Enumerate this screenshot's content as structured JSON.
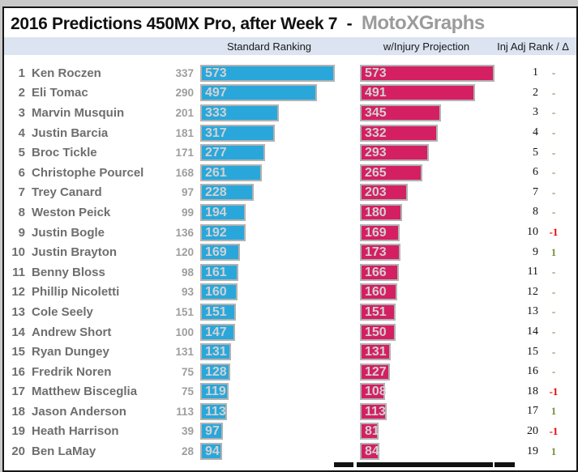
{
  "title": {
    "main": "2016 Predictions 450MX Pro, after Week 7",
    "separator": "-",
    "brand": "MotoXGraphs"
  },
  "columns": {
    "standard": "Standard Ranking",
    "injury": "w/Injury Projection",
    "adj": "Inj Adj Rank / Δ"
  },
  "colors": {
    "standard_bar": "#29A7DB",
    "injury_bar": "#D41F63",
    "bar_border": "#B2B2B2",
    "bar_label": "#D2D1D1",
    "header_band": "#DCE4F1",
    "delta_up": "#76923C",
    "delta_down": "#EE0000",
    "delta_none": "#6F7F33",
    "brand_gray": "#9B9B9B"
  },
  "chart_data": {
    "type": "bar",
    "orientation": "horizontal",
    "title": "2016 Predictions 450MX Pro, after Week 7 - MotoXGraphs",
    "xlim": [
      0,
      590
    ],
    "legend_position": "top",
    "grid": false,
    "categories": [
      "Ken Roczen",
      "Eli Tomac",
      "Marvin Musquin",
      "Justin Barcia",
      "Broc Tickle",
      "Christophe Pourcel",
      "Trey Canard",
      "Weston Peick",
      "Justin Bogle",
      "Justin Brayton",
      "Benny Bloss",
      "Phillip Nicoletti",
      "Cole Seely",
      "Andrew Short",
      "Ryan Dungey",
      "Fredrik Noren",
      "Matthew Bisceglia",
      "Jason Anderson",
      "Heath Harrison",
      "Ben LaMay"
    ],
    "ranks": [
      1,
      2,
      3,
      4,
      5,
      6,
      7,
      8,
      9,
      10,
      11,
      12,
      13,
      14,
      15,
      16,
      17,
      18,
      19,
      20
    ],
    "secondary_values": [
      337,
      290,
      201,
      181,
      171,
      168,
      97,
      99,
      136,
      120,
      98,
      93,
      151,
      100,
      131,
      75,
      75,
      113,
      39,
      28
    ],
    "series": [
      {
        "name": "Standard Ranking",
        "color": "#29A7DB",
        "values": [
          573,
          497,
          333,
          317,
          277,
          261,
          228,
          194,
          192,
          169,
          161,
          160,
          151,
          147,
          131,
          128,
          119,
          113,
          97,
          94
        ]
      },
      {
        "name": "w/Injury Projection",
        "color": "#D41F63",
        "values": [
          573,
          491,
          345,
          332,
          293,
          265,
          203,
          180,
          169,
          173,
          166,
          160,
          151,
          150,
          131,
          127,
          108,
          113,
          81,
          84
        ]
      }
    ],
    "inj_adj_ranks": [
      1,
      2,
      3,
      4,
      5,
      6,
      7,
      8,
      10,
      9,
      11,
      12,
      13,
      14,
      15,
      16,
      18,
      17,
      20,
      19
    ],
    "deltas": [
      "-",
      "-",
      "-",
      "-",
      "-",
      "-",
      "-",
      "-",
      "-1",
      "1",
      "-",
      "-",
      "-",
      "-",
      "-",
      "-",
      "-1",
      "1",
      "-1",
      "1"
    ]
  }
}
